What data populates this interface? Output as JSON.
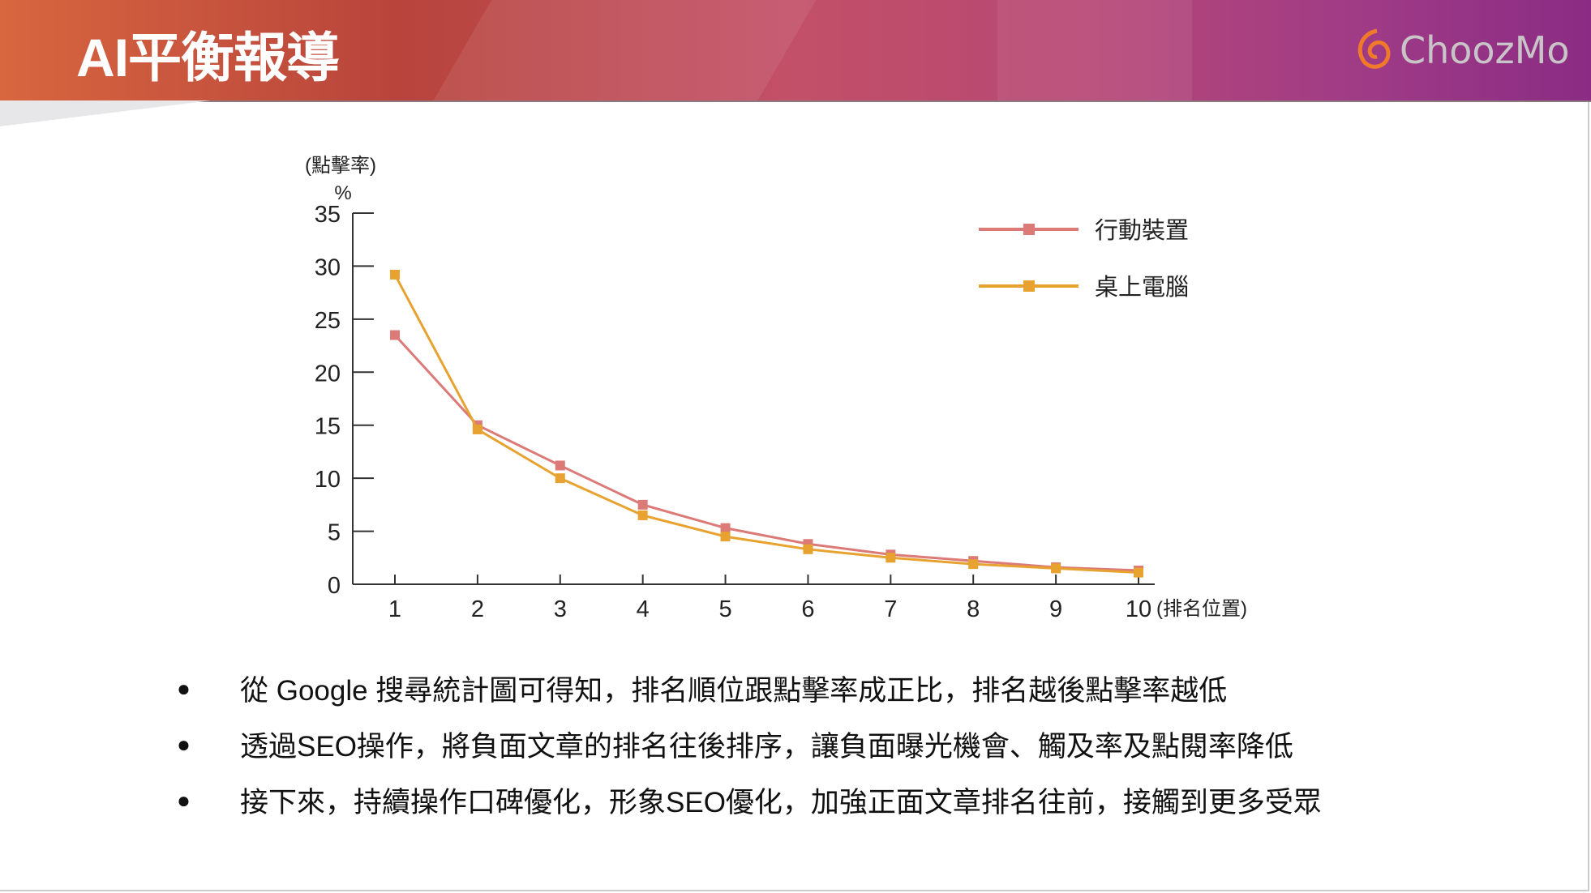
{
  "header": {
    "title": "AI平衡報導",
    "logo": "ChoozMo"
  },
  "chart_data": {
    "type": "line",
    "ylabel": "(點擊率)",
    "yunit": "%",
    "xlabel": "(排名位置)",
    "x": [
      1,
      2,
      3,
      4,
      5,
      6,
      7,
      8,
      9,
      10
    ],
    "ylim": [
      0,
      35
    ],
    "yticks": [
      0,
      5,
      10,
      15,
      20,
      25,
      30,
      35
    ],
    "grid": false,
    "legend_position": "top-right",
    "series": [
      {
        "name": "行動裝置",
        "color": "#dc7a78",
        "values": [
          23.5,
          15.0,
          11.2,
          7.5,
          5.3,
          3.8,
          2.8,
          2.2,
          1.6,
          1.3
        ]
      },
      {
        "name": "桌上電腦",
        "color": "#e8a230",
        "values": [
          29.2,
          14.6,
          10.0,
          6.5,
          4.5,
          3.3,
          2.5,
          1.9,
          1.5,
          1.1
        ]
      }
    ]
  },
  "bullets": [
    "從 Google 搜尋統計圖可得知，排名順位跟點擊率成正比，排名越後點擊率越低",
    "透過SEO操作，將負面文章的排名往後排序，讓負面曝光機會、觸及率及點閱率降低",
    "接下來，持續操作口碑優化，形象SEO優化，加強正面文章排名往前，接觸到更多受眾"
  ]
}
